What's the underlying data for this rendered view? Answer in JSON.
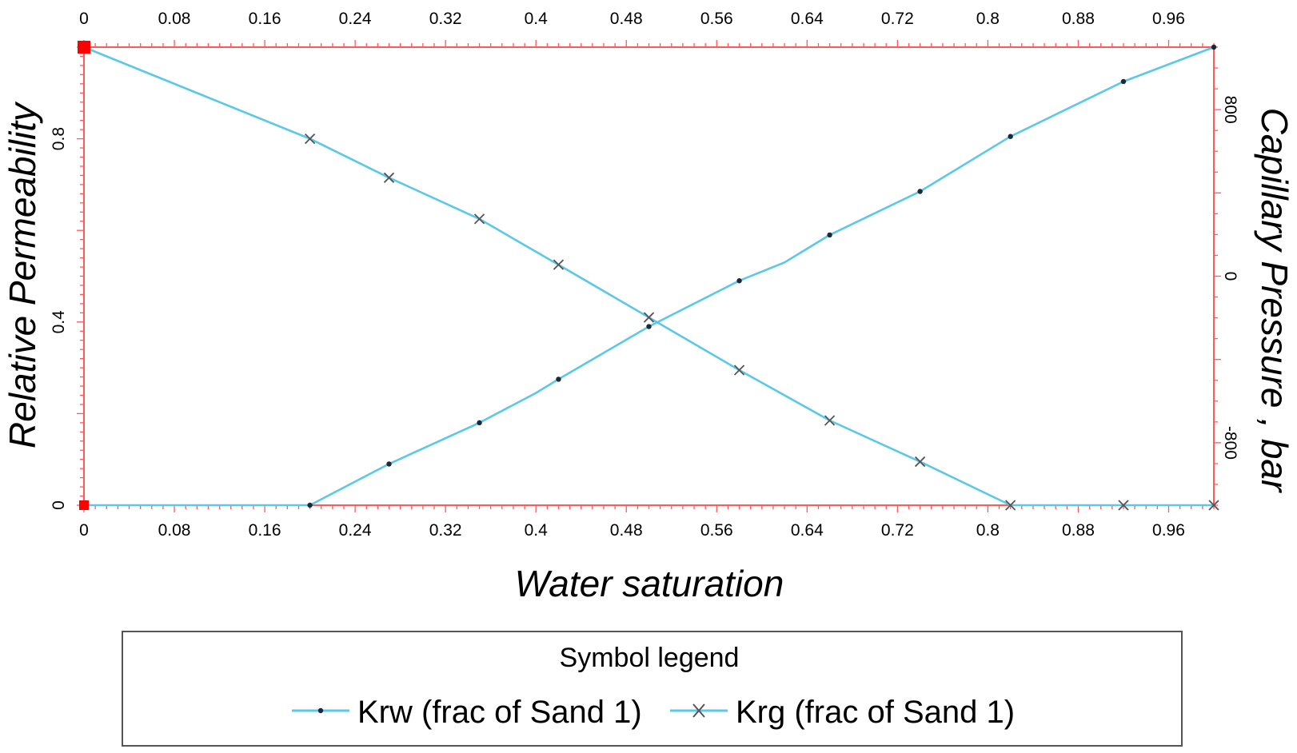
{
  "chart_data": {
    "type": "line",
    "title": "",
    "xlabel": "Water saturation",
    "ylabel": "Relative Permeability",
    "y2label": "Capillary Pressure , bar",
    "xlim": [
      0,
      1
    ],
    "ylim": [
      0,
      1
    ],
    "y2lim": [
      -1100,
      1100
    ],
    "x_ticks": [
      "0",
      "0.08",
      "0.16",
      "0.24",
      "0.32",
      "0.4",
      "0.48",
      "0.56",
      "0.64",
      "0.72",
      "0.8",
      "0.88",
      "0.96"
    ],
    "x_tick_values": [
      0,
      0.08,
      0.16,
      0.24,
      0.32,
      0.4,
      0.48,
      0.56,
      0.64,
      0.72,
      0.8,
      0.88,
      0.96
    ],
    "y_ticks": [
      "0",
      "0.4",
      "0.8"
    ],
    "y_tick_values": [
      0,
      0.4,
      0.8
    ],
    "y2_ticks": [
      "800",
      "0",
      "-800"
    ],
    "y2_tick_values": [
      800,
      0,
      -800
    ],
    "grid": false,
    "frame_color": "#ff5a5a",
    "line_color": "#5ac8e6",
    "series": [
      {
        "name": "Krw (frac of Sand 1)",
        "marker": "dot",
        "x": [
          0,
          0.2,
          0.27,
          0.35,
          0.4,
          0.42,
          0.5,
          0.5,
          0.58,
          0.62,
          0.66,
          0.74,
          0.82,
          0.92,
          1.0
        ],
        "y": [
          0,
          0,
          0.09,
          0.18,
          0.245,
          0.275,
          0.39,
          0.39,
          0.49,
          0.53,
          0.59,
          0.685,
          0.805,
          0.925,
          1.0
        ],
        "markers_x": [
          0.2,
          0.27,
          0.35,
          0.42,
          0.5,
          0.58,
          0.66,
          0.74,
          0.82,
          0.92,
          1.0
        ],
        "markers_y": [
          0,
          0.09,
          0.18,
          0.275,
          0.39,
          0.49,
          0.59,
          0.685,
          0.805,
          0.925,
          1.0
        ]
      },
      {
        "name": "Krg (frac of Sand 1)",
        "marker": "x",
        "x": [
          0,
          0.2,
          0.27,
          0.35,
          0.42,
          0.5,
          0.58,
          0.66,
          0.74,
          0.82,
          0.92,
          1.0
        ],
        "y": [
          1.0,
          0.8,
          0.715,
          0.625,
          0.525,
          0.41,
          0.295,
          0.185,
          0.095,
          0,
          0,
          0
        ]
      }
    ],
    "legend": {
      "title": "Symbol legend",
      "placement": "bottom"
    }
  }
}
